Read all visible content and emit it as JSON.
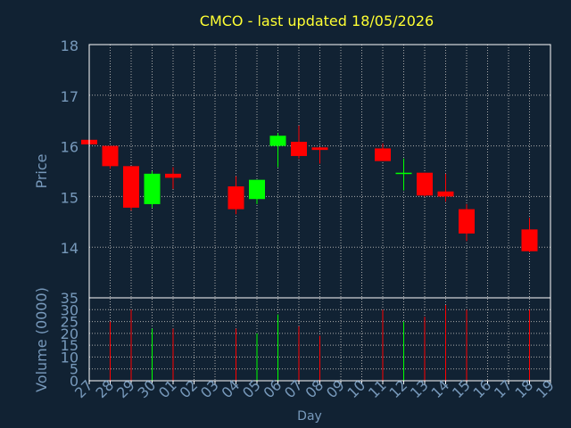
{
  "chart_data": {
    "type": "candlestick",
    "title": "CMCO - last updated 18/05/2026",
    "xlabel": "Day",
    "price_panel": {
      "ylabel": "Price",
      "ylim": [
        13.0,
        18.0
      ],
      "yticks": [
        "14",
        "15",
        "16",
        "17",
        "18"
      ]
    },
    "volume_panel": {
      "ylabel": "Volume (0000)",
      "ylim": [
        0,
        35
      ],
      "yticks": [
        "0",
        "5",
        "10",
        "15",
        "20",
        "25",
        "30",
        "35"
      ]
    },
    "grid": true,
    "x_tick_labels": [
      "27",
      "28",
      "29",
      "30",
      "01",
      "02",
      "03",
      "04",
      "05",
      "06",
      "07",
      "08",
      "09",
      "10",
      "11",
      "12",
      "13",
      "14",
      "15",
      "16",
      "17",
      "18",
      "19"
    ],
    "candles": [
      {
        "day": "27",
        "open": 16.12,
        "high": 16.12,
        "low": 16.0,
        "close": 16.03,
        "volume": 24
      },
      {
        "day": "28",
        "open": 16.0,
        "high": 16.0,
        "low": 15.55,
        "close": 15.6,
        "volume": 25
      },
      {
        "day": "29",
        "open": 15.6,
        "high": 15.6,
        "low": 14.72,
        "close": 14.78,
        "volume": 30
      },
      {
        "day": "30",
        "open": 14.85,
        "high": 15.5,
        "low": 14.78,
        "close": 15.45,
        "volume": 22
      },
      {
        "day": "01",
        "open": 15.45,
        "high": 15.58,
        "low": 15.15,
        "close": 15.37,
        "volume": 22
      },
      {
        "day": "04",
        "open": 15.2,
        "high": 15.4,
        "low": 14.65,
        "close": 14.75,
        "volume": 22
      },
      {
        "day": "05",
        "open": 14.95,
        "high": 15.33,
        "low": 14.85,
        "close": 15.33,
        "volume": 20
      },
      {
        "day": "06",
        "open": 16.0,
        "high": 16.25,
        "low": 15.58,
        "close": 16.2,
        "volume": 28
      },
      {
        "day": "07",
        "open": 16.08,
        "high": 16.4,
        "low": 15.75,
        "close": 15.8,
        "volume": 23
      },
      {
        "day": "08",
        "open": 15.97,
        "high": 15.98,
        "low": 15.65,
        "close": 15.92,
        "volume": 19
      },
      {
        "day": "11",
        "open": 15.95,
        "high": 16.05,
        "low": 15.7,
        "close": 15.7,
        "volume": 30
      },
      {
        "day": "12",
        "open": 15.45,
        "high": 15.75,
        "low": 15.12,
        "close": 15.47,
        "volume": 25
      },
      {
        "day": "13",
        "open": 15.47,
        "high": 15.47,
        "low": 15.0,
        "close": 15.02,
        "volume": 27
      },
      {
        "day": "14",
        "open": 15.1,
        "high": 15.45,
        "low": 14.9,
        "close": 15.0,
        "volume": 32
      },
      {
        "day": "15",
        "open": 14.75,
        "high": 14.85,
        "low": 14.12,
        "close": 14.27,
        "volume": 30
      },
      {
        "day": "18",
        "open": 14.35,
        "high": 14.58,
        "low": 13.9,
        "close": 13.92,
        "volume": 30
      }
    ],
    "colors": {
      "background": "#112233",
      "plot_border": "#ffffff",
      "grid": "#aaaaaa",
      "title": "#ffff33",
      "axis_text": "#7799bb",
      "up": "#00ff00",
      "down": "#ff0000"
    }
  }
}
